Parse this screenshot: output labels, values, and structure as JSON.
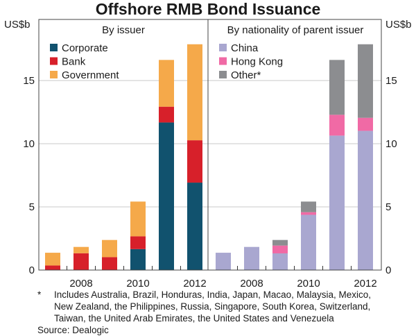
{
  "chart_data": [
    {
      "type": "bar",
      "stacked": true,
      "title": "Offshore RMB Bond Issuance",
      "panel_title": "By issuer",
      "ylabel": "US$b",
      "ylim": [
        0,
        18.5
      ],
      "yticks": [
        0,
        5,
        10,
        15
      ],
      "categories": [
        "2007",
        "2008",
        "2009",
        "2010",
        "2011",
        "2012"
      ],
      "xtick_labels": [
        "2008",
        "2010",
        "2012"
      ],
      "grid": true,
      "legend": "top-left",
      "series": [
        {
          "name": "Corporate",
          "color": "#11526e",
          "values": [
            0,
            0,
            0,
            1.66,
            11.68,
            6.92
          ]
        },
        {
          "name": "Bank",
          "color": "#d7202a",
          "values": [
            0.36,
            1.33,
            1.02,
            1.01,
            1.25,
            3.35
          ]
        },
        {
          "name": "Government",
          "color": "#f5a94a",
          "values": [
            1.01,
            0.5,
            1.36,
            2.75,
            3.7,
            7.6
          ]
        }
      ]
    },
    {
      "type": "bar",
      "stacked": true,
      "panel_title": "By nationality of parent issuer",
      "ylabel": "US$b",
      "ylim": [
        0,
        18.5
      ],
      "yticks": [
        0,
        5,
        10,
        15
      ],
      "categories": [
        "2007",
        "2008",
        "2009",
        "2010",
        "2011",
        "2012"
      ],
      "xtick_labels": [
        "2008",
        "2010",
        "2012"
      ],
      "grid": true,
      "legend": "top-left",
      "series": [
        {
          "name": "China",
          "color": "#a9a7d0",
          "values": [
            1.37,
            1.83,
            1.32,
            4.37,
            10.64,
            11.02
          ]
        },
        {
          "name": "Hong Kong",
          "color": "#f06aa5",
          "values": [
            0,
            0,
            0.62,
            0.21,
            1.65,
            1.03
          ]
        },
        {
          "name": "Other*",
          "color": "#8c8d90",
          "values": [
            0,
            0,
            0.44,
            0.84,
            4.34,
            5.82
          ]
        }
      ]
    }
  ],
  "footnote": {
    "marker": "*",
    "lines": [
      "Includes Australia, Brazil, Honduras, India, Japan, Macao, Malaysia, Mexico,",
      "New Zealand, the Philippines, Russia, Singapore, South Korea, Switzerland,",
      "Taiwan, the United Arab Emirates, the United States and Venezuela"
    ],
    "source": "Source: Dealogic"
  }
}
